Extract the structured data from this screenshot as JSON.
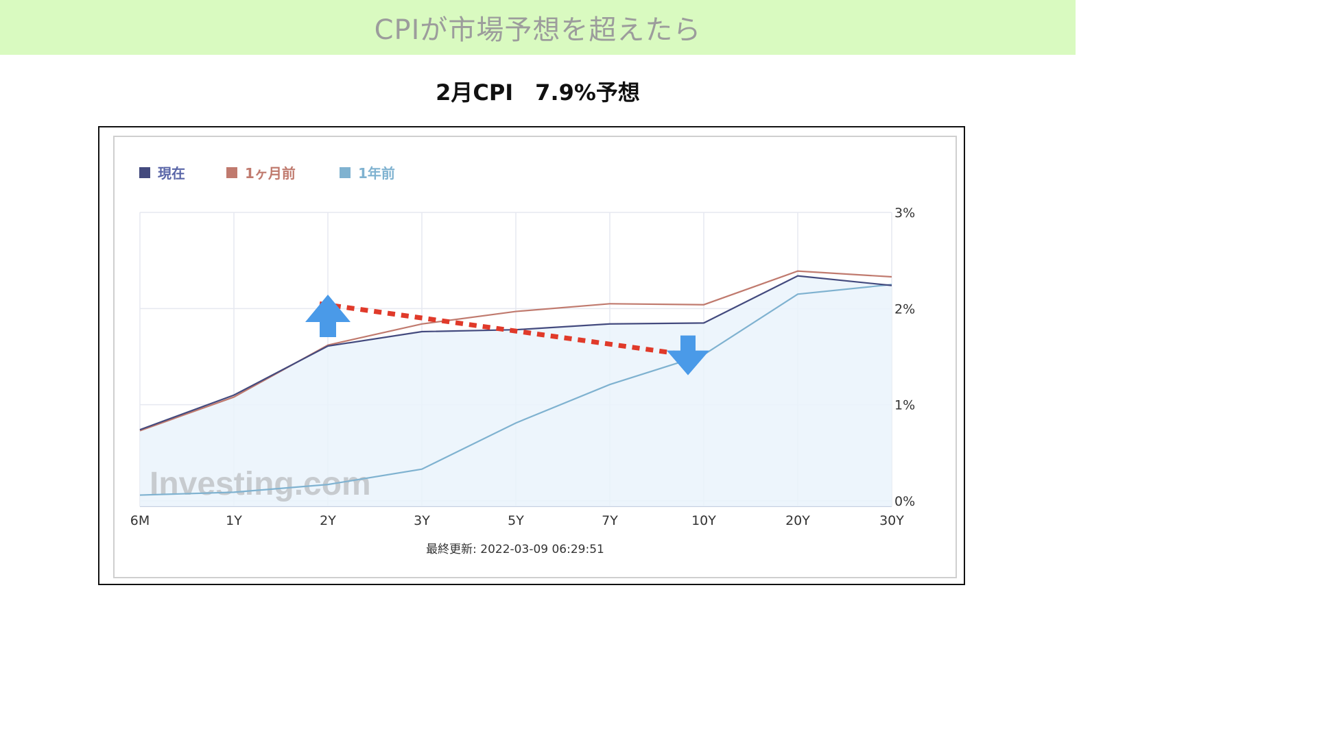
{
  "header": {
    "title": "CPIが市場予想を超えたら"
  },
  "subtitle": "2月CPI　7.9%予想",
  "chart_data": {
    "type": "line",
    "categories": [
      "6M",
      "1Y",
      "2Y",
      "3Y",
      "5Y",
      "7Y",
      "10Y",
      "20Y",
      "30Y"
    ],
    "y_tick_labels": [
      "0%",
      "1%",
      "2%",
      "3%"
    ],
    "ylim": [
      0,
      3
    ],
    "grid": true,
    "legend_position": "top-left",
    "series": [
      {
        "name": "現在",
        "color": "#434a7e",
        "values": [
          0.74,
          1.1,
          1.61,
          1.76,
          1.78,
          1.84,
          1.85,
          2.34,
          2.24
        ],
        "filled": true
      },
      {
        "name": "1ヶ月前",
        "color": "#c07a6e",
        "values": [
          0.73,
          1.08,
          1.62,
          1.84,
          1.97,
          2.05,
          2.04,
          2.39,
          2.33
        ]
      },
      {
        "name": "1年前",
        "color": "#7fb2d0",
        "values": [
          0.06,
          0.09,
          0.17,
          0.33,
          0.81,
          1.21,
          1.52,
          2.15,
          2.25
        ]
      }
    ],
    "annotations": {
      "trend_line": {
        "from": {
          "x": "2Y",
          "y": 2.05
        },
        "to": {
          "x": "10Y",
          "y": 1.5
        },
        "color": "#e03a2a",
        "style": "dotted"
      },
      "up_arrow": {
        "x": "2Y",
        "y": 1.86,
        "color": "#4a9ae8"
      },
      "down_arrow": {
        "x": "10Y",
        "y": 1.72,
        "color": "#4a9ae8"
      }
    },
    "watermark": "Investing.com",
    "updated_text": "最終更新: 2022-03-09 06:29:51"
  }
}
